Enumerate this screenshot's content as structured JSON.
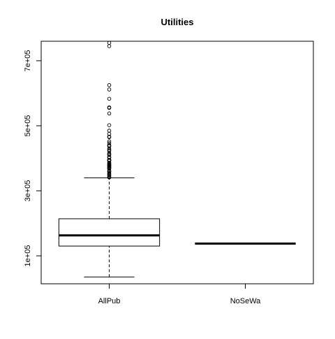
{
  "chart_data": {
    "type": "box",
    "title": "Utilities",
    "xlabel": "",
    "ylabel": "",
    "categories": [
      "AllPub",
      "NoSeWa"
    ],
    "ylim": [
      14000,
      760000
    ],
    "y_ticks": [
      100000,
      300000,
      500000,
      700000
    ],
    "y_tick_labels": [
      "1e+05",
      "3e+05",
      "5e+05",
      "7e+05"
    ],
    "grid": false,
    "boxes": [
      {
        "category": "AllPub",
        "whisker_low": 34900,
        "q1": 129975,
        "median": 163000,
        "q3": 214000,
        "whisker_high": 340000,
        "outliers": [
          341000,
          342643,
          345000,
          348000,
          350000,
          354000,
          355000,
          359100,
          360000,
          361919,
          367294,
          369900,
          370878,
          372402,
          372500,
          375000,
          377426,
          377500,
          378500,
          380000,
          381000,
          383970,
          385000,
          386250,
          392000,
          392500,
          394432,
          394617,
          395000,
          395192,
          402000,
          402861,
          403000,
          410000,
          412500,
          415298,
          423000,
          426000,
          430000,
          437154,
          438780,
          440000,
          446261,
          451950,
          465000,
          466500,
          475000,
          485000,
          501837,
          538000,
          555000,
          556581,
          582933,
          611657,
          625000,
          745000,
          755000
        ]
      },
      {
        "category": "NoSeWa",
        "whisker_low": 137500,
        "q1": 137500,
        "median": 137500,
        "q3": 137500,
        "whisker_high": 137500,
        "outliers": []
      }
    ]
  }
}
